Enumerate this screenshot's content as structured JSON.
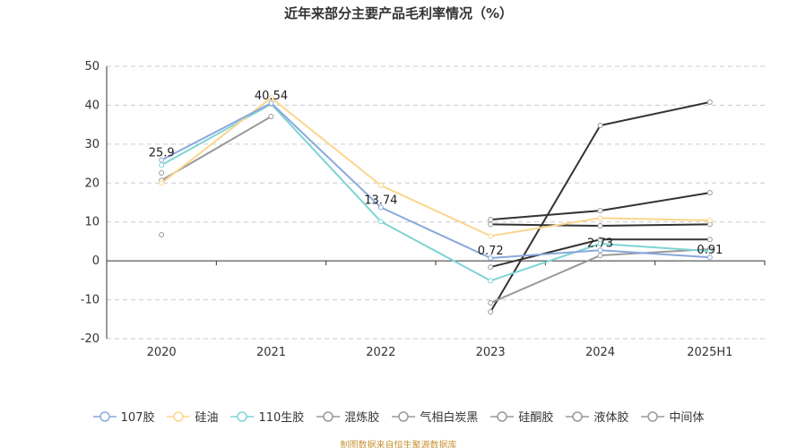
{
  "chart_data": {
    "type": "line",
    "title": "近年来部分主要产品毛利率情况（%）",
    "categories": [
      "2020",
      "2021",
      "2022",
      "2023",
      "2024",
      "2025H1"
    ],
    "ylim": [
      -20,
      50
    ],
    "yticks": [
      -20,
      -10,
      0,
      10,
      20,
      30,
      40,
      50
    ],
    "grid": "horizontal dashed",
    "legend_position": "bottom",
    "series": [
      {
        "name": "107胶",
        "color": "#8aa8dc",
        "values": [
          25.9,
          40.54,
          13.74,
          0.72,
          2.73,
          0.91
        ],
        "labels": [
          "25.9",
          "40.54",
          "13.74",
          "0.72",
          "2.73",
          "0.91"
        ]
      },
      {
        "name": "硅油",
        "color": "#fbd68e",
        "values": [
          20.0,
          41.9,
          19.4,
          6.4,
          11.0,
          10.4
        ]
      },
      {
        "name": "110生胶",
        "color": "#7fd4d4",
        "values": [
          24.6,
          40.3,
          10.1,
          -5.1,
          4.4,
          2.5
        ]
      },
      {
        "name": "混炼胶",
        "color": "#999999",
        "values": [
          20.7,
          37.1,
          null,
          -10.8,
          1.4,
          3.0
        ]
      },
      {
        "name": "气相白炭黑",
        "color": "#333333",
        "values": [
          22.6,
          null,
          null,
          -1.6,
          5.5,
          5.5
        ]
      },
      {
        "name": "硅酮胶",
        "color": "#333333",
        "values": [
          6.7,
          null,
          null,
          10.6,
          12.9,
          17.5
        ]
      },
      {
        "name": "液体胶",
        "color": "#333333",
        "values": [
          null,
          null,
          null,
          9.4,
          9.0,
          9.4
        ]
      },
      {
        "name": "中间体",
        "color": "#333333",
        "values": [
          null,
          null,
          null,
          -13.1,
          34.8,
          40.8
        ]
      }
    ]
  },
  "source": "制图数据来自恒生聚源数据库"
}
